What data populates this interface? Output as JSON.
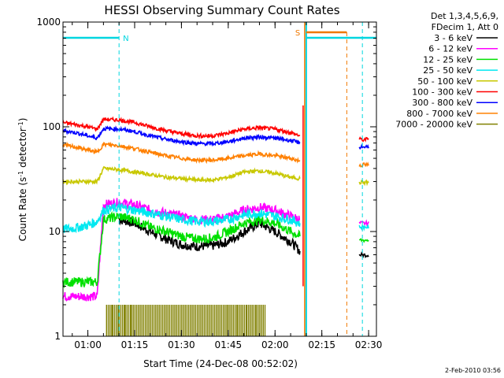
{
  "chart_data": {
    "type": "line",
    "title": "HESSI Observing Summary Count Rates",
    "xlabel": "Start Time (24-Dec-08 00:52:02)",
    "ylabel": "Count Rate (s⁻¹ detector⁻¹)",
    "ylabel_main": "Count Rate (s",
    "ylabel_sup1": "-1",
    "ylabel_mid": " detector",
    "ylabel_sup2": "-1",
    "ylabel_end": ")",
    "y_scale": "log",
    "ylim": [
      1,
      1000
    ],
    "xlim": [
      "00:52:02",
      "02:32:30"
    ],
    "x_ticks": [
      "01:00",
      "01:15",
      "01:30",
      "01:45",
      "02:00",
      "02:15",
      "02:30"
    ],
    "y_ticks": [
      "1",
      "10",
      "100",
      "1000"
    ],
    "grid": false,
    "legend_position": "right",
    "legend_header": [
      "Det 1,3,4,5,6,9,",
      "FDecim 1, Att 0"
    ],
    "annotations": [
      {
        "text": "N",
        "color": "#00d6e0",
        "time": "01:10"
      },
      {
        "text": "S",
        "color": "#f07800",
        "time": "02:12"
      }
    ],
    "timestamp": "2-Feb-2010 03:56",
    "series": [
      {
        "name": "3 - 6 keV",
        "color": "#000000",
        "x": [
          "01:10",
          "01:15",
          "01:20",
          "01:25",
          "01:30",
          "01:35",
          "01:40",
          "01:45",
          "01:50",
          "01:55",
          "02:00",
          "02:05",
          "02:08"
        ],
        "y": [
          13,
          12,
          10,
          8.5,
          7.5,
          7.2,
          7.3,
          8,
          10,
          12,
          10,
          8,
          6.5
        ]
      },
      {
        "name": "6 - 12 keV",
        "color": "#ff00ff",
        "x": [
          "00:52",
          "00:56",
          "01:00",
          "01:03",
          "01:05",
          "01:10",
          "01:15",
          "01:20",
          "01:25",
          "01:30",
          "01:35",
          "01:40",
          "01:45",
          "01:50",
          "01:55",
          "02:00",
          "02:05",
          "02:08"
        ],
        "y": [
          2.4,
          2.4,
          2.4,
          2.4,
          18,
          19,
          18,
          16,
          15,
          14,
          13,
          13,
          14,
          16,
          17,
          16,
          14,
          13
        ]
      },
      {
        "name": "12 - 25 keV",
        "color": "#00e000",
        "x": [
          "00:52",
          "00:56",
          "01:00",
          "01:03",
          "01:05",
          "01:10",
          "01:15",
          "01:20",
          "01:25",
          "01:30",
          "01:35",
          "01:40",
          "01:45",
          "01:50",
          "01:55",
          "02:00",
          "02:05",
          "02:08"
        ],
        "y": [
          3.3,
          3.3,
          3.3,
          3.3,
          13,
          14,
          13,
          11,
          10,
          9,
          8.5,
          8.7,
          10,
          12,
          13,
          12,
          10,
          9
        ]
      },
      {
        "name": "25 - 50 keV",
        "color": "#00e8f0",
        "x": [
          "00:52",
          "00:56",
          "01:00",
          "01:03",
          "01:05",
          "01:10",
          "01:15",
          "01:20",
          "01:25",
          "01:30",
          "01:35",
          "01:40",
          "01:45",
          "01:50",
          "01:55",
          "02:00",
          "02:05",
          "02:08"
        ],
        "y": [
          10.5,
          10.8,
          11.5,
          12.5,
          16,
          17,
          16,
          15,
          14,
          13,
          12.5,
          12.5,
          13,
          14.5,
          15,
          14,
          13,
          12
        ]
      },
      {
        "name": "50 - 100 keV",
        "color": "#c8c800",
        "x": [
          "00:52",
          "00:56",
          "01:00",
          "01:03",
          "01:05",
          "01:10",
          "01:15",
          "01:20",
          "01:25",
          "01:30",
          "01:35",
          "01:40",
          "01:45",
          "01:50",
          "01:55",
          "02:00",
          "02:05",
          "02:08"
        ],
        "y": [
          30,
          30,
          30,
          30,
          40,
          39,
          37,
          35,
          33,
          32,
          31,
          31,
          33,
          37,
          38,
          36,
          33,
          32
        ]
      },
      {
        "name": "100 - 300 keV",
        "color": "#ff0000",
        "x": [
          "00:52",
          "00:56",
          "01:00",
          "01:03",
          "01:05",
          "01:10",
          "01:15",
          "01:20",
          "01:25",
          "01:30",
          "01:35",
          "01:40",
          "01:45",
          "01:50",
          "01:55",
          "02:00",
          "02:05",
          "02:08"
        ],
        "y": [
          110,
          105,
          100,
          95,
          118,
          116,
          110,
          100,
          92,
          86,
          82,
          82,
          87,
          95,
          98,
          95,
          88,
          82
        ]
      },
      {
        "name": "300 - 800 keV",
        "color": "#0000ff",
        "x": [
          "00:52",
          "00:56",
          "01:00",
          "01:03",
          "01:05",
          "01:10",
          "01:15",
          "01:20",
          "01:25",
          "01:30",
          "01:35",
          "01:40",
          "01:45",
          "01:50",
          "01:55",
          "02:00",
          "02:05",
          "02:08"
        ],
        "y": [
          92,
          88,
          82,
          78,
          96,
          95,
          90,
          82,
          76,
          72,
          69,
          69,
          72,
          78,
          80,
          78,
          74,
          70
        ]
      },
      {
        "name": "800 - 7000 keV",
        "color": "#ff8000",
        "x": [
          "00:52",
          "00:56",
          "01:00",
          "01:03",
          "01:05",
          "01:10",
          "01:15",
          "01:20",
          "01:25",
          "01:30",
          "01:35",
          "01:40",
          "01:45",
          "01:50",
          "01:55",
          "02:00",
          "02:05",
          "02:08"
        ],
        "y": [
          67,
          64,
          60,
          57,
          68,
          66,
          62,
          57,
          53,
          50,
          48,
          48,
          50,
          53,
          55,
          53,
          50,
          47
        ]
      },
      {
        "name": "7000 - 20000 keV",
        "color": "#808000",
        "x": [
          "01:06",
          "01:08",
          "01:10",
          "01:12",
          "01:14",
          "01:45",
          "01:48",
          "01:51",
          "01:54",
          "01:57"
        ],
        "y": [
          2,
          2,
          2,
          2,
          2,
          2,
          2,
          2,
          2,
          2
        ]
      }
    ]
  }
}
